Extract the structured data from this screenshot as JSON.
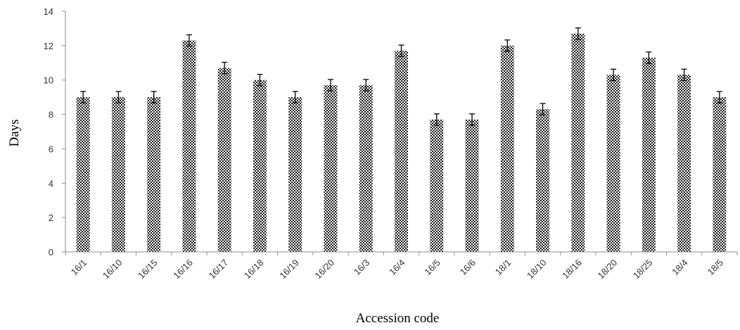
{
  "chart_data": {
    "type": "bar",
    "xlabel": "Accession code",
    "ylabel": "Days",
    "ylim": [
      0,
      14
    ],
    "yticks": [
      0,
      2,
      4,
      6,
      8,
      10,
      12,
      14
    ],
    "grid": false,
    "categories": [
      "16/1",
      "16/10",
      "16/15",
      "16/16",
      "16/17",
      "16/18",
      "16/19",
      "16/20",
      "16/3",
      "16/4",
      "16/5",
      "16/6",
      "18/1",
      "18/10",
      "18/16",
      "18/20",
      "18/25",
      "18/4",
      "18/5"
    ],
    "values": [
      9.0,
      9.0,
      9.0,
      12.3,
      10.7,
      10.0,
      9.0,
      9.7,
      9.7,
      11.7,
      7.7,
      7.7,
      12.0,
      8.3,
      12.7,
      10.3,
      11.3,
      10.3,
      9.0
    ],
    "error": [
      0.33,
      0.33,
      0.33,
      0.33,
      0.33,
      0.33,
      0.33,
      0.33,
      0.33,
      0.33,
      0.33,
      0.33,
      0.33,
      0.33,
      0.33,
      0.33,
      0.33,
      0.33,
      0.33
    ],
    "colors": {
      "bar_fill": "#ffffff",
      "bar_pattern": "#1a1a1a",
      "axis": "#8c8c8c",
      "error_bar": "#000000"
    }
  }
}
